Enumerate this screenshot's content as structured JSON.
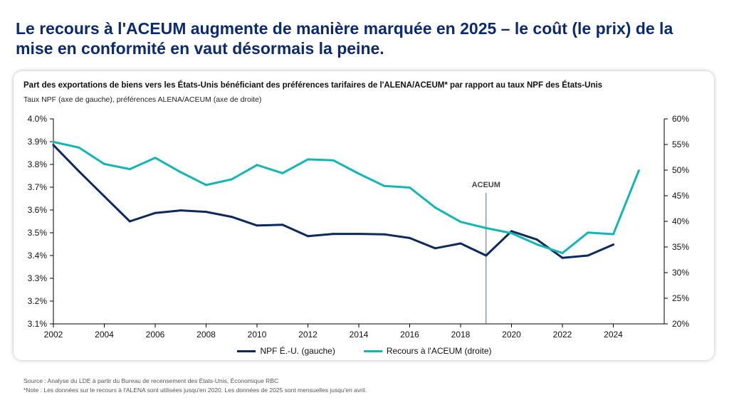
{
  "header": {
    "title": "Le recours à l'ACEUM augmente de manière marquée en 2025 – le coût (le prix) de la mise en conformité en vaut désormais la peine."
  },
  "chart_data": {
    "type": "line",
    "title": "Part des exportations de biens vers les États-Unis bénéficiant des préférences tarifaires de l'ALENA/ACEUM* par rapport au taux NPF des États-Unis",
    "subtitle": "Taux NPF (axe de gauche), préférences ALENA/ACEUM (axe de droite)",
    "x_range": [
      2002,
      2026
    ],
    "x_ticks": [
      "2002",
      "2004",
      "2006",
      "2008",
      "2010",
      "2012",
      "2014",
      "2016",
      "2018",
      "2020",
      "2022",
      "2024"
    ],
    "y_left": {
      "range": [
        3.1,
        4.0
      ],
      "ticks": [
        "3.1%",
        "3.2%",
        "3.3%",
        "3.4%",
        "3.5%",
        "3.6%",
        "3.7%",
        "3.8%",
        "3.9%",
        "4.0%"
      ]
    },
    "y_right": {
      "range": [
        20,
        60
      ],
      "ticks": [
        "20%",
        "25%",
        "30%",
        "35%",
        "40%",
        "45%",
        "50%",
        "55%",
        "60%"
      ]
    },
    "annotation": {
      "label": "ACEUM",
      "x": 2019
    },
    "series": [
      {
        "name": "NPF É.-U. (gauche)",
        "axis": "left",
        "color": "#0d2a5e",
        "x": [
          2002,
          2003,
          2004,
          2005,
          2006,
          2007,
          2008,
          2009,
          2010,
          2011,
          2012,
          2013,
          2014,
          2015,
          2016,
          2017,
          2018,
          2019,
          2020,
          2021,
          2022,
          2023,
          2024
        ],
        "y": [
          3.885,
          3.77,
          3.66,
          3.55,
          3.587,
          3.598,
          3.592,
          3.57,
          3.532,
          3.535,
          3.485,
          3.495,
          3.495,
          3.493,
          3.477,
          3.432,
          3.453,
          3.4,
          3.507,
          3.47,
          3.39,
          3.4,
          3.448
        ]
      },
      {
        "name": "Recours à l'ACEUM (droite)",
        "axis": "right",
        "color": "#13b6b4",
        "x": [
          2002,
          2003,
          2004,
          2005,
          2006,
          2007,
          2008,
          2009,
          2010,
          2011,
          2012,
          2013,
          2014,
          2015,
          2016,
          2017,
          2018,
          2019,
          2020,
          2021,
          2022,
          2023,
          2024,
          2025
        ],
        "y": [
          55.5,
          54.4,
          51.2,
          50.2,
          52.4,
          49.6,
          47.1,
          48.2,
          51.0,
          49.4,
          52.1,
          51.9,
          49.3,
          46.9,
          46.6,
          42.7,
          39.9,
          38.7,
          37.7,
          35.5,
          33.8,
          37.8,
          37.5,
          49.9
        ]
      }
    ],
    "grid": false,
    "legend_position": "bottom"
  },
  "footer": {
    "source": "Source : Analyse du LDE à partir du Bureau de recensement des États-Unis, Économique RBC",
    "note": "*Note : Les données sur le recours à l'ALENA sont utilisées jusqu'en 2020. Les données de 2025 sont mensuelles jusqu'en avril."
  }
}
